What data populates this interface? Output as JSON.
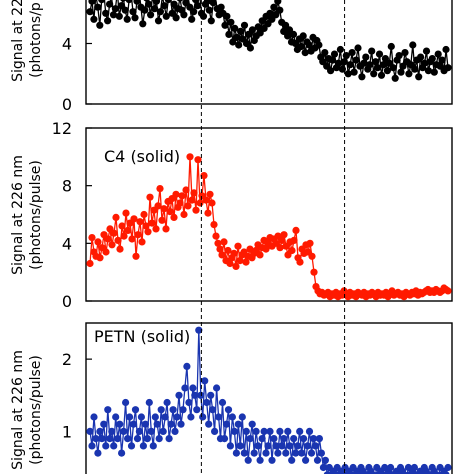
{
  "chart_data": [
    {
      "type": "line",
      "panel": "top (cropped)",
      "annotation": "",
      "ylabel_lines": [
        "Signal at 22",
        "(photons/p"
      ],
      "ylim": [
        0,
        8
      ],
      "yticks": [
        0,
        4
      ],
      "color": "#000000",
      "x_range": [
        0,
        180
      ],
      "series": [
        {
          "values": [
            6.1,
            6.8,
            5.6,
            7.2,
            6.4,
            5.2,
            6.9,
            7.5,
            6.0,
            5.5,
            6.6,
            7.1,
            5.9,
            6.3,
            7.4,
            5.8,
            6.5,
            7.0,
            6.2,
            5.6,
            6.9,
            7.3,
            6.1,
            5.7,
            6.8,
            7.6,
            6.4,
            5.3,
            6.2,
            7.0,
            6.6,
            5.9,
            7.2,
            6.3,
            6.8,
            5.5,
            6.1,
            7.1,
            6.5,
            5.8,
            6.9,
            7.4,
            6.0,
            6.6,
            5.7,
            6.3,
            7.0,
            6.2,
            5.9,
            6.7,
            7.2,
            6.4,
            5.6,
            6.1,
            6.9,
            6.5,
            7.3,
            6.0,
            5.8,
            6.6,
            6.8,
            6.2,
            5.5,
            6.7,
            7.1,
            6.3,
            5.9,
            6.4,
            6.0,
            5.2,
            5.8,
            4.6,
            5.4,
            4.1,
            5.0,
            4.4,
            3.9,
            4.8,
            4.3,
            5.2,
            4.0,
            4.6,
            3.7,
            4.9,
            4.2,
            4.5,
            5.1,
            4.7,
            5.5,
            5.0,
            5.8,
            5.3,
            6.0,
            5.6,
            6.4,
            5.9,
            6.8,
            6.2,
            5.4,
            4.8,
            5.2,
            4.5,
            4.9,
            4.1,
            4.6,
            4.0,
            3.6,
            4.3,
            3.8,
            4.5,
            3.4,
            4.1,
            3.9,
            3.5,
            4.4,
            3.7,
            4.2,
            3.9,
            3.1,
            2.8,
            3.4,
            2.5,
            3.0,
            2.2,
            2.9,
            3.3,
            2.4,
            2.7,
            3.6,
            2.3,
            2.8,
            3.2,
            2.0,
            2.6,
            3.4,
            2.1,
            2.9,
            3.7,
            2.5,
            1.8,
            2.7,
            3.1,
            2.3,
            2.6,
            3.5,
            2.0,
            2.8,
            2.4,
            3.3,
            1.9,
            2.6,
            3.0,
            2.2,
            2.7,
            3.8,
            2.4,
            1.7,
            2.9,
            3.2,
            2.1,
            2.5,
            3.4,
            2.8,
            2.0,
            2.6,
            3.9,
            2.3,
            2.9,
            1.8,
            3.1,
            2.4,
            2.7,
            3.5,
            2.2,
            2.8,
            3.0,
            2.1,
            2.6,
            3.3,
            2.5,
            2.9,
            2.2,
            3.6,
            2.4
          ]
        }
      ]
    },
    {
      "type": "line",
      "panel": "middle",
      "annotation": "C4 (solid)",
      "ylabel_lines": [
        "Signal at 226 nm",
        "(photons/pulse)"
      ],
      "ylim": [
        0,
        12
      ],
      "yticks": [
        0,
        4,
        8,
        12
      ],
      "color": "#ff1a00",
      "x_range": [
        0,
        180
      ],
      "series": [
        {
          "values": [
            2.6,
            4.4,
            3.4,
            3.1,
            4.1,
            3.0,
            3.7,
            4.6,
            3.4,
            4.3,
            5.0,
            3.9,
            4.7,
            5.8,
            4.2,
            3.6,
            5.2,
            4.5,
            6.1,
            4.9,
            5.4,
            4.3,
            5.7,
            3.1,
            4.6,
            5.5,
            4.1,
            6.0,
            5.2,
            4.8,
            7.2,
            5.4,
            6.3,
            5.0,
            6.6,
            7.8,
            5.6,
            6.4,
            5.0,
            6.9,
            6.2,
            7.1,
            5.8,
            7.4,
            6.5,
            6.8,
            7.3,
            6.0,
            7.7,
            6.6,
            10.0,
            7.0,
            7.5,
            6.3,
            9.8,
            6.8,
            7.3,
            8.7,
            7.0,
            6.1,
            7.4,
            6.8,
            5.3,
            4.5,
            4.0,
            3.6,
            3.2,
            4.1,
            2.8,
            3.5,
            2.6,
            3.0,
            3.3,
            2.4,
            3.8,
            2.8,
            3.2,
            3.4,
            2.7,
            3.1,
            3.6,
            3.0,
            3.3,
            3.5,
            3.9,
            3.2,
            3.7,
            4.2,
            3.6,
            4.0,
            4.4,
            3.8,
            4.3,
            4.0,
            4.5,
            3.7,
            4.2,
            4.6,
            3.8,
            3.2,
            4.1,
            3.5,
            4.2,
            4.9,
            3.0,
            2.7,
            3.6,
            3.3,
            3.9,
            3.4,
            4.0,
            3.1,
            2.0,
            1.0,
            0.7,
            0.5,
            0.6,
            0.4,
            0.5,
            0.6,
            0.3,
            0.5,
            0.4,
            0.6,
            0.3,
            0.5,
            0.4,
            0.7,
            0.5,
            0.3,
            0.6,
            0.4,
            0.5,
            0.3,
            0.6,
            0.5,
            0.4,
            0.6,
            0.3,
            0.5,
            0.4,
            0.6,
            0.5,
            0.3,
            0.6,
            0.4,
            0.5,
            0.4,
            0.6,
            0.3,
            0.5,
            0.7,
            0.4,
            0.5,
            0.6,
            0.4,
            0.5,
            0.3,
            0.6,
            0.5,
            0.4,
            0.6,
            0.5,
            0.7,
            0.4,
            0.6,
            0.5,
            0.6,
            0.7,
            0.8,
            0.6,
            0.7,
            0.6,
            0.8,
            0.7,
            0.6,
            0.7,
            0.9,
            0.8,
            0.7
          ]
        }
      ]
    },
    {
      "type": "line",
      "panel": "bottom (cropped)",
      "annotation": "PETN (solid)",
      "ylabel_lines": [
        "Signal at 226 nm",
        "(photons/pulse)"
      ],
      "ylim": [
        0.3,
        2.5
      ],
      "yticks": [
        1,
        2
      ],
      "color": "#1a35b0",
      "x_range": [
        0,
        180
      ],
      "series": [
        {
          "values": [
            1.0,
            0.8,
            1.2,
            0.9,
            0.7,
            1.0,
            0.9,
            1.1,
            0.8,
            1.3,
            0.9,
            1.0,
            0.8,
            1.2,
            0.9,
            1.1,
            0.7,
            1.0,
            1.4,
            0.9,
            1.2,
            0.8,
            1.1,
            1.3,
            0.9,
            1.0,
            1.2,
            0.8,
            1.1,
            0.9,
            1.4,
            1.0,
            0.8,
            1.2,
            1.1,
            0.9,
            1.3,
            1.0,
            1.2,
            1.4,
            0.9,
            1.1,
            1.3,
            1.0,
            1.2,
            1.5,
            1.1,
            1.3,
            1.6,
            1.9,
            1.4,
            1.2,
            1.6,
            1.5,
            1.3,
            2.4,
            1.5,
            1.2,
            1.7,
            1.4,
            1.1,
            1.5,
            1.3,
            1.0,
            1.6,
            1.2,
            0.9,
            1.4,
            0.9,
            1.1,
            1.3,
            0.8,
            1.2,
            1.0,
            0.7,
            1.1,
            0.8,
            1.2,
            0.7,
            1.0,
            0.6,
            0.9,
            1.1,
            0.7,
            1.0,
            0.8,
            0.6,
            0.9,
            1.0,
            0.7,
            0.8,
            1.0,
            0.6,
            0.9,
            0.8,
            0.7,
            1.0,
            0.8,
            0.9,
            0.7,
            1.0,
            0.8,
            0.6,
            0.9,
            0.7,
            0.8,
            1.0,
            0.7,
            0.9,
            0.6,
            0.8,
            1.0,
            0.7,
            0.9,
            0.8,
            0.6,
            0.9,
            0.7,
            0.5,
            0.6,
            0.4,
            0.5,
            0.35,
            0.45,
            0.4,
            0.5,
            0.35,
            0.45,
            0.4,
            0.5,
            0.35,
            0.45,
            0.4,
            0.5,
            0.35,
            0.45,
            0.4,
            0.5,
            0.45,
            0.35,
            0.4,
            0.5,
            0.45,
            0.4,
            0.35,
            0.5,
            0.4,
            0.45,
            0.35,
            0.5,
            0.4,
            0.45,
            0.5,
            0.4,
            0.35,
            0.45,
            0.4,
            0.5,
            0.45,
            0.4,
            0.35,
            0.5,
            0.4,
            0.45,
            0.5,
            0.4,
            0.35,
            0.45,
            0.4,
            0.5,
            0.45,
            0.35,
            0.4,
            0.5,
            0.45,
            0.4,
            0.35,
            0.5,
            0.4,
            0.45,
            0.4,
            0.5
          ]
        }
      ]
    }
  ],
  "reference_lines_x": [
    56,
    128
  ]
}
